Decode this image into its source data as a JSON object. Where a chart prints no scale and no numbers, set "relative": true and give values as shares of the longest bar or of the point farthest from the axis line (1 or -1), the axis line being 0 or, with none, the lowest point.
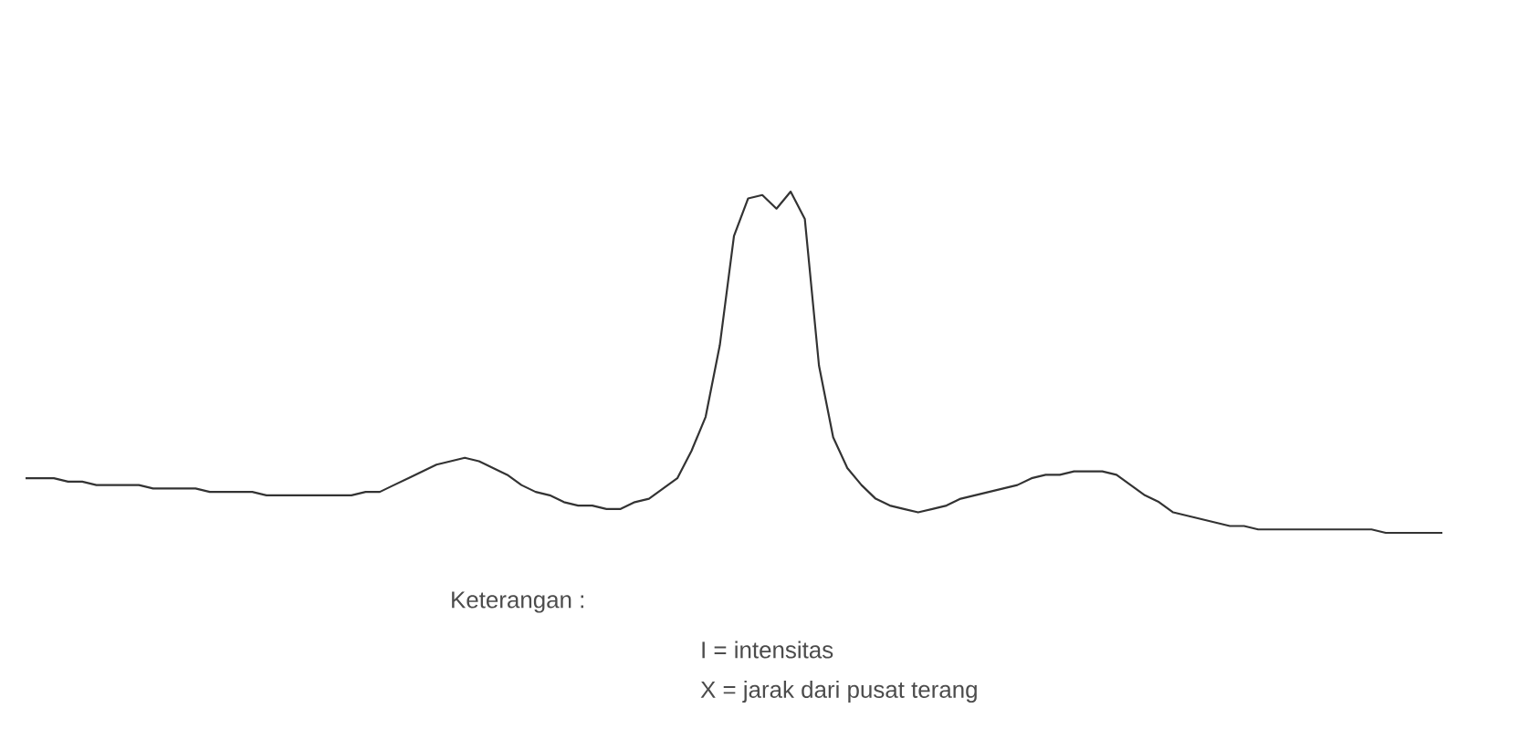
{
  "chart_data": {
    "type": "line",
    "relative": true,
    "color": "#333333",
    "categories": [
      null,
      null,
      null,
      null,
      null,
      null,
      null,
      null,
      null,
      null,
      null,
      null,
      null,
      null,
      null,
      null,
      null,
      null,
      null,
      null,
      null,
      null,
      null,
      null,
      null,
      null,
      null,
      null,
      null,
      null,
      null,
      null,
      null,
      null,
      null,
      null,
      null,
      null,
      null,
      null,
      null,
      null,
      null,
      null,
      null,
      null,
      null,
      null,
      null,
      null,
      null,
      null,
      null,
      null,
      null,
      null,
      null,
      null,
      null,
      null,
      null,
      null,
      null,
      null,
      null,
      null,
      null,
      null,
      null,
      null,
      null,
      null,
      null,
      null,
      null,
      null,
      null,
      null,
      null,
      null,
      null,
      null,
      null,
      null,
      null,
      null,
      null,
      null,
      null,
      null,
      null,
      null,
      null,
      null,
      null,
      null,
      null,
      null,
      null,
      null,
      null
    ],
    "values": [
      0.16,
      0.16,
      0.16,
      0.15,
      0.15,
      0.14,
      0.14,
      0.14,
      0.14,
      0.13,
      0.13,
      0.13,
      0.13,
      0.12,
      0.12,
      0.12,
      0.12,
      0.11,
      0.11,
      0.11,
      0.11,
      0.11,
      0.11,
      0.11,
      0.12,
      0.12,
      0.14,
      0.16,
      0.18,
      0.2,
      0.21,
      0.22,
      0.21,
      0.19,
      0.17,
      0.14,
      0.12,
      0.11,
      0.09,
      0.08,
      0.08,
      0.07,
      0.07,
      0.09,
      0.1,
      0.13,
      0.16,
      0.24,
      0.34,
      0.55,
      0.87,
      0.98,
      0.99,
      0.95,
      1.0,
      0.92,
      0.49,
      0.28,
      0.19,
      0.14,
      0.1,
      0.08,
      0.07,
      0.06,
      0.07,
      0.08,
      0.1,
      0.11,
      0.12,
      0.13,
      0.14,
      0.16,
      0.17,
      0.17,
      0.18,
      0.18,
      0.18,
      0.17,
      0.14,
      0.11,
      0.09,
      0.06,
      0.05,
      0.04,
      0.03,
      0.02,
      0.02,
      0.01,
      0.01,
      0.01,
      0.01,
      0.01,
      0.01,
      0.01,
      0.01,
      0.01,
      0,
      0,
      0,
      0,
      0
    ],
    "annotations": [
      "Keterangan :",
      "I = intensitas",
      "X = jarak dari pusat terang"
    ]
  }
}
